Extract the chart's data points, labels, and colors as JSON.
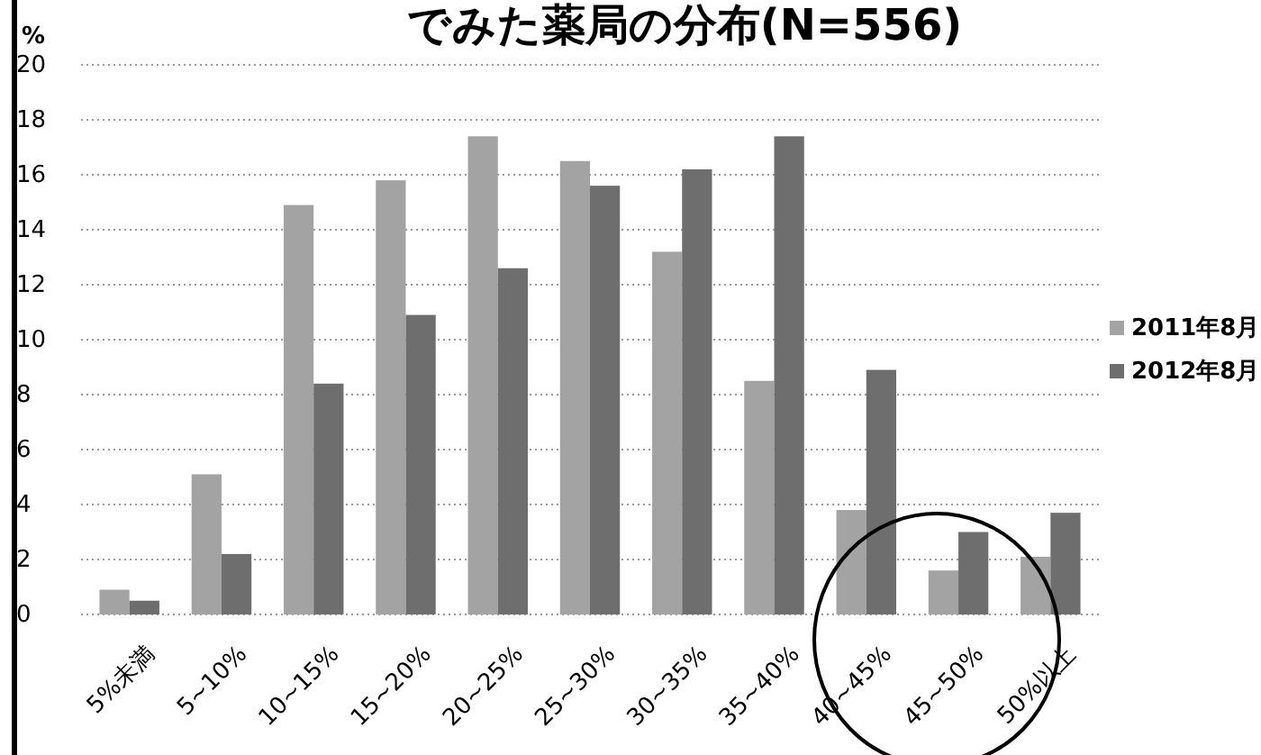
{
  "chart_data": {
    "type": "bar",
    "title": "でみた薬局の分布(N=556)",
    "ylabel": "%",
    "categories": [
      "5%未満",
      "5~10%",
      "10~15%",
      "15~20%",
      "20~25%",
      "25~30%",
      "30~35%",
      "35~40%",
      "40~45%",
      "45~50%",
      "50%以上"
    ],
    "series": [
      {
        "name": "2011年8月",
        "color": "#a3a3a3",
        "values": [
          0.9,
          5.1,
          14.9,
          15.8,
          17.4,
          16.5,
          13.2,
          8.5,
          3.8,
          1.6,
          2.1
        ]
      },
      {
        "name": "2012年8月",
        "color": "#6e6e6e",
        "values": [
          0.5,
          2.2,
          8.4,
          10.9,
          12.6,
          15.6,
          16.2,
          17.4,
          8.9,
          3.0,
          3.7
        ]
      }
    ],
    "ylim": [
      0,
      20
    ],
    "yticks": [
      0,
      2,
      4,
      6,
      8,
      10,
      12,
      14,
      16,
      18,
      20
    ],
    "grid": "y",
    "legend": "right"
  }
}
